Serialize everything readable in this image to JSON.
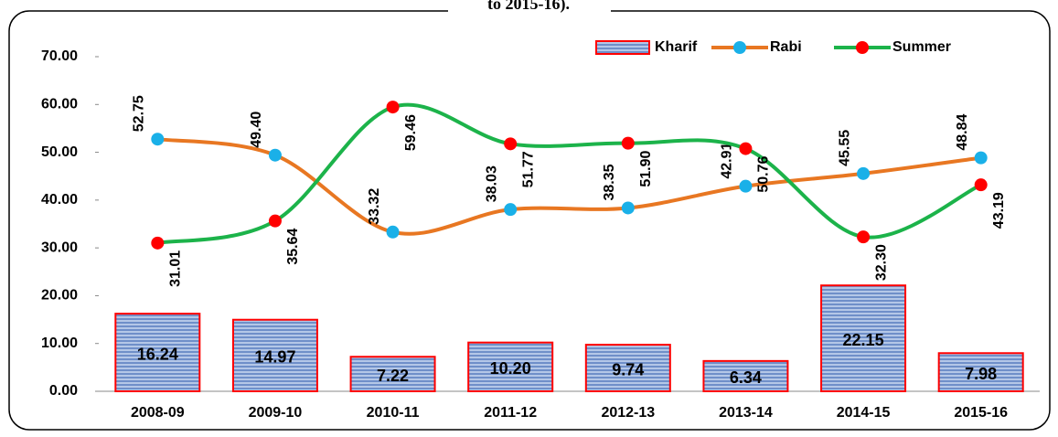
{
  "chart_data": {
    "type": "bar_line",
    "title": "to 2015-16).",
    "categories": [
      "2008-09",
      "2009-10",
      "2010-11",
      "2011-12",
      "2012-13",
      "2013-14",
      "2014-15",
      "2015-16"
    ],
    "series": [
      {
        "name": "Kharif",
        "type": "bar",
        "color": "#8eaadb",
        "edge_color": "#ff0000",
        "values": [
          16.24,
          14.97,
          7.22,
          10.2,
          9.74,
          6.34,
          22.15,
          7.98
        ],
        "value_labels": [
          "16.24",
          "14.97",
          "7.22",
          "10.20",
          "9.74",
          "6.34",
          "22.15",
          "7.98"
        ]
      },
      {
        "name": "Rabi",
        "type": "line",
        "color": "#e87722",
        "marker_color": "#1ab0e8",
        "values": [
          52.75,
          49.4,
          33.32,
          38.03,
          38.35,
          42.91,
          45.55,
          48.84
        ],
        "value_labels": [
          "52.75",
          "49.40",
          "33.32",
          "38.03",
          "38.35",
          "42.91",
          "45.55",
          "48.84"
        ]
      },
      {
        "name": "Summer",
        "type": "line",
        "color": "#1cb34a",
        "marker_color": "#ff0000",
        "values": [
          31.01,
          35.64,
          59.46,
          51.77,
          51.9,
          50.76,
          32.3,
          43.19
        ],
        "value_labels": [
          "31.01",
          "35.64",
          "59.46",
          "51.77",
          "51.90",
          "50.76",
          "32.30",
          "43.19"
        ]
      }
    ],
    "ylim": [
      0,
      70
    ],
    "yticks": [
      {
        "value": 0,
        "label": "0.00"
      },
      {
        "value": 10,
        "label": "10.00"
      },
      {
        "value": 20,
        "label": "20.00"
      },
      {
        "value": 30,
        "label": "30.00"
      },
      {
        "value": 40,
        "label": "40.00"
      },
      {
        "value": 50,
        "label": "50.00"
      },
      {
        "value": 60,
        "label": "60.00"
      },
      {
        "value": 70,
        "label": "70.00"
      }
    ],
    "legend": "top-right",
    "grid": false
  }
}
